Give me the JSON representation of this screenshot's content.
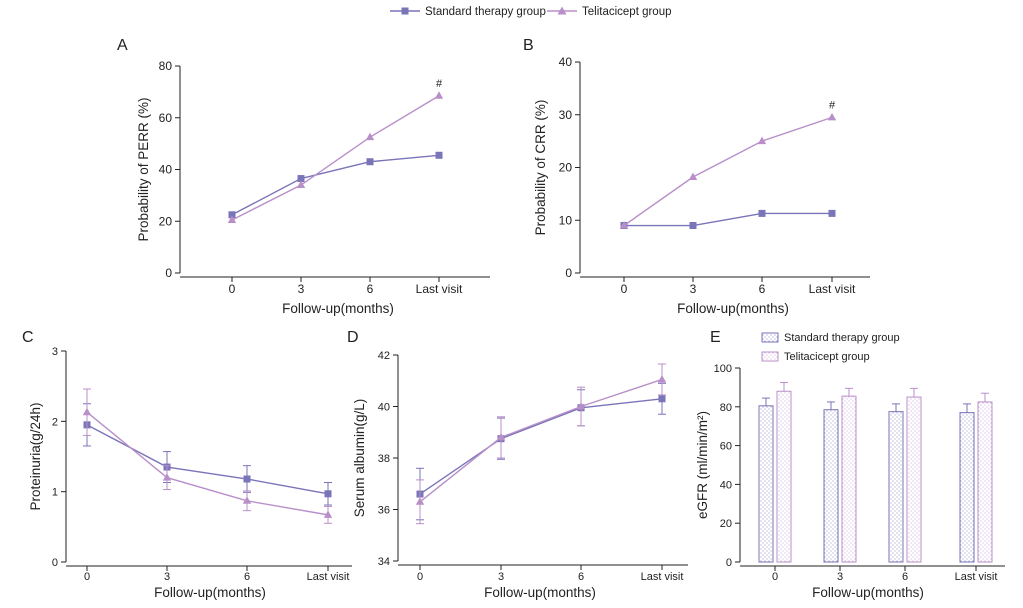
{
  "colors": {
    "standard": "#7a74b8",
    "telitacicept": "#b98fc9",
    "axis": "#222222"
  },
  "legend": {
    "standard": "Standard therapy group",
    "telitacicept": "Telitacicept group",
    "standard_icon": "square-marker-icon",
    "telitacicept_icon": "triangle-marker-icon"
  },
  "chart_data": [
    {
      "id": "A",
      "panel_label": "A",
      "type": "line",
      "categories": [
        "0",
        "3",
        "6",
        "Last visit"
      ],
      "xlabel": "Follow-up(months)",
      "ylabel": "Probability of PERR (%)",
      "ylim": [
        0,
        80
      ],
      "yticks": [
        0,
        20,
        40,
        60,
        80
      ],
      "series": [
        {
          "name": "Standard therapy group",
          "values": [
            22.5,
            36.5,
            43,
            45.5
          ]
        },
        {
          "name": "Telitacicept group",
          "values": [
            20.5,
            34,
            52.5,
            68.5
          ]
        }
      ],
      "annotations": [
        {
          "category_index": 3,
          "text": "#"
        }
      ]
    },
    {
      "id": "B",
      "panel_label": "B",
      "type": "line",
      "categories": [
        "0",
        "3",
        "6",
        "Last visit"
      ],
      "xlabel": "Follow-up(months)",
      "ylabel": "Probability of CRR (%)",
      "ylim": [
        0,
        40
      ],
      "yticks": [
        0,
        10,
        20,
        30,
        40
      ],
      "series": [
        {
          "name": "Standard therapy group",
          "values": [
            9,
            9,
            11.3,
            11.3
          ]
        },
        {
          "name": "Telitacicept group",
          "values": [
            9,
            18.2,
            25,
            29.5
          ]
        }
      ],
      "annotations": [
        {
          "category_index": 3,
          "text": "#"
        }
      ]
    },
    {
      "id": "C",
      "panel_label": "C",
      "type": "line",
      "categories": [
        "0",
        "3",
        "6",
        "Last visit"
      ],
      "xlabel": "Follow-up(months)",
      "ylabel": "Proteinuria(g/24h)",
      "ylim": [
        0,
        3
      ],
      "yticks": [
        0,
        1,
        2,
        3
      ],
      "series": [
        {
          "name": "Standard therapy group",
          "values": [
            1.95,
            1.35,
            1.18,
            0.97
          ],
          "errors": [
            0.3,
            0.22,
            0.19,
            0.16
          ]
        },
        {
          "name": "Telitacicept group",
          "values": [
            2.13,
            1.2,
            0.87,
            0.67
          ],
          "errors": [
            0.33,
            0.17,
            0.14,
            0.12
          ]
        }
      ]
    },
    {
      "id": "D",
      "panel_label": "D",
      "type": "line",
      "categories": [
        "0",
        "3",
        "6",
        "Last visit"
      ],
      "xlabel": "Follow-up(months)",
      "ylabel": "Serum albumin(g/L)",
      "ylim": [
        34,
        42
      ],
      "yticks": [
        34,
        36,
        38,
        40,
        42
      ],
      "series": [
        {
          "name": "Standard therapy group",
          "values": [
            36.6,
            38.75,
            39.95,
            40.3
          ],
          "errors": [
            1.0,
            0.8,
            0.7,
            0.6
          ]
        },
        {
          "name": "Telitacicept group",
          "values": [
            36.3,
            38.8,
            40.0,
            41.05
          ],
          "errors": [
            0.85,
            0.8,
            0.75,
            0.6
          ]
        }
      ]
    },
    {
      "id": "E",
      "panel_label": "E",
      "type": "bar",
      "categories": [
        "0",
        "3",
        "6",
        "Last visit"
      ],
      "xlabel": "Follow-up(months)",
      "ylabel": "eGFR (ml/min/m²)",
      "ylim": [
        0,
        100
      ],
      "yticks": [
        0,
        20,
        40,
        60,
        80,
        100
      ],
      "series": [
        {
          "name": "Standard therapy group",
          "values": [
            80.5,
            78.5,
            77.5,
            77
          ],
          "errors": [
            4,
            4,
            4,
            4.5
          ]
        },
        {
          "name": "Telitacicept group",
          "values": [
            88,
            85.5,
            85,
            82.5
          ],
          "errors": [
            4.5,
            4,
            4.5,
            4.5
          ]
        }
      ],
      "legend": [
        "Standard therapy group",
        "Telitacicept group"
      ]
    }
  ]
}
